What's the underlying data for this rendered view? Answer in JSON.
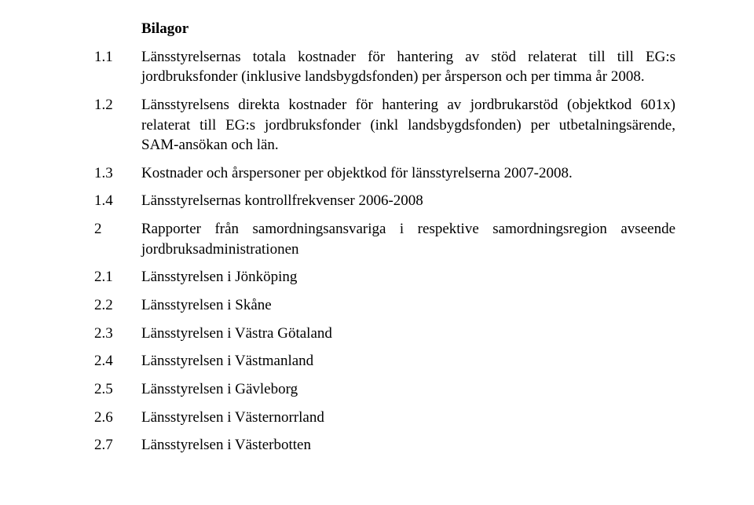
{
  "heading": "Bilagor",
  "items": [
    {
      "num": "1.1",
      "text": "Länsstyrelsernas totala kostnader för hantering av stöd relaterat till till EG:s jordbruksfonder (inklusive landsbygdsfonden) per årsperson och per timma år 2008."
    },
    {
      "num": "1.2",
      "text": "Länsstyrelsens direkta kostnader för hantering av jordbrukarstöd (objektkod 601x) relaterat till EG:s jordbruksfonder (inkl landsbygdsfonden) per utbetalningsärende, SAM-ansökan och län."
    },
    {
      "num": "1.3",
      "text": "Kostnader och årspersoner per objektkod för länsstyrelserna 2007-2008."
    },
    {
      "num": "1.4",
      "text": "Länsstyrelsernas kontrollfrekvenser 2006-2008"
    },
    {
      "num": "2",
      "text": "Rapporter från samordningsansvariga i respektive samordningsregion avseende jordbruksadministrationen"
    },
    {
      "num": "2.1",
      "text": "Länsstyrelsen i Jönköping"
    },
    {
      "num": "2.2",
      "text": "Länsstyrelsen i Skåne"
    },
    {
      "num": "2.3",
      "text": "Länsstyrelsen i Västra Götaland"
    },
    {
      "num": "2.4",
      "text": "Länsstyrelsen i Västmanland"
    },
    {
      "num": "2.5",
      "text": "Länsstyrelsen i Gävleborg"
    },
    {
      "num": "2.6",
      "text": "Länsstyrelsen i Västernorrland"
    },
    {
      "num": "2.7",
      "text": "Länsstyrelsen i Västerbotten"
    }
  ]
}
